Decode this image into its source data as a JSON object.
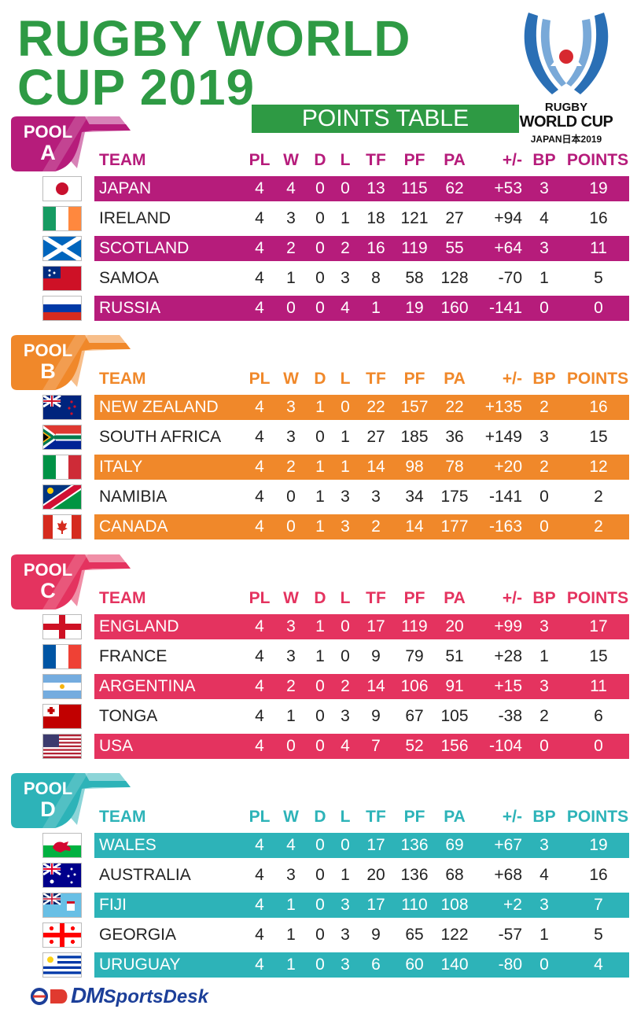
{
  "title_line1": "RUGBY WORLD",
  "title_line2": "CUP 2019",
  "subtitle": "POINTS TABLE",
  "logo": {
    "line1": "RUGBY",
    "line2": "WORLD CUP",
    "line3": "JAPAN日本2019"
  },
  "columns": {
    "team": "TEAM",
    "pl": "PL",
    "w": "W",
    "d": "D",
    "l": "L",
    "tf": "TF",
    "pf": "PF",
    "pa": "PA",
    "diff": "+/-",
    "bp": "BP",
    "pts": "POINTS"
  },
  "pools": [
    {
      "word": "POOL",
      "letter": "A",
      "color": "#b61c7b",
      "teams": [
        {
          "name": "JAPAN",
          "flag": "japan-flag",
          "pl": "4",
          "w": "4",
          "d": "0",
          "l": "0",
          "tf": "13",
          "pf": "115",
          "pa": "62",
          "diff": "+53",
          "bp": "3",
          "pts": "19"
        },
        {
          "name": "IRELAND",
          "flag": "ireland-flag",
          "pl": "4",
          "w": "3",
          "d": "0",
          "l": "1",
          "tf": "18",
          "pf": "121",
          "pa": "27",
          "diff": "+94",
          "bp": "4",
          "pts": "16"
        },
        {
          "name": "SCOTLAND",
          "flag": "scotland-flag",
          "pl": "4",
          "w": "2",
          "d": "0",
          "l": "2",
          "tf": "16",
          "pf": "119",
          "pa": "55",
          "diff": "+64",
          "bp": "3",
          "pts": "11"
        },
        {
          "name": "SAMOA",
          "flag": "samoa-flag",
          "pl": "4",
          "w": "1",
          "d": "0",
          "l": "3",
          "tf": "8",
          "pf": "58",
          "pa": "128",
          "diff": "-70",
          "bp": "1",
          "pts": "5"
        },
        {
          "name": "RUSSIA",
          "flag": "russia-flag",
          "pl": "4",
          "w": "0",
          "d": "0",
          "l": "4",
          "tf": "1",
          "pf": "19",
          "pa": "160",
          "diff": "-141",
          "bp": "0",
          "pts": "0"
        }
      ]
    },
    {
      "word": "POOL",
      "letter": "B",
      "color": "#f0882a",
      "teams": [
        {
          "name": "NEW ZEALAND",
          "flag": "new-zealand-flag",
          "pl": "4",
          "w": "3",
          "d": "1",
          "l": "0",
          "tf": "22",
          "pf": "157",
          "pa": "22",
          "diff": "+135",
          "bp": "2",
          "pts": "16"
        },
        {
          "name": "SOUTH AFRICA",
          "flag": "south-africa-flag",
          "pl": "4",
          "w": "3",
          "d": "0",
          "l": "1",
          "tf": "27",
          "pf": "185",
          "pa": "36",
          "diff": "+149",
          "bp": "3",
          "pts": "15"
        },
        {
          "name": "ITALY",
          "flag": "italy-flag",
          "pl": "4",
          "w": "2",
          "d": "1",
          "l": "1",
          "tf": "14",
          "pf": "98",
          "pa": "78",
          "diff": "+20",
          "bp": "2",
          "pts": "12"
        },
        {
          "name": "NAMIBIA",
          "flag": "namibia-flag",
          "pl": "4",
          "w": "0",
          "d": "1",
          "l": "3",
          "tf": "3",
          "pf": "34",
          "pa": "175",
          "diff": "-141",
          "bp": "0",
          "pts": "2"
        },
        {
          "name": "CANADA",
          "flag": "canada-flag",
          "pl": "4",
          "w": "0",
          "d": "1",
          "l": "3",
          "tf": "2",
          "pf": "14",
          "pa": "177",
          "diff": "-163",
          "bp": "0",
          "pts": "2"
        }
      ]
    },
    {
      "word": "POOL",
      "letter": "C",
      "color": "#e4335f",
      "teams": [
        {
          "name": "ENGLAND",
          "flag": "england-flag",
          "pl": "4",
          "w": "3",
          "d": "1",
          "l": "0",
          "tf": "17",
          "pf": "119",
          "pa": "20",
          "diff": "+99",
          "bp": "3",
          "pts": "17"
        },
        {
          "name": "FRANCE",
          "flag": "france-flag",
          "pl": "4",
          "w": "3",
          "d": "1",
          "l": "0",
          "tf": "9",
          "pf": "79",
          "pa": "51",
          "diff": "+28",
          "bp": "1",
          "pts": "15"
        },
        {
          "name": "ARGENTINA",
          "flag": "argentina-flag",
          "pl": "4",
          "w": "2",
          "d": "0",
          "l": "2",
          "tf": "14",
          "pf": "106",
          "pa": "91",
          "diff": "+15",
          "bp": "3",
          "pts": "11"
        },
        {
          "name": "TONGA",
          "flag": "tonga-flag",
          "pl": "4",
          "w": "1",
          "d": "0",
          "l": "3",
          "tf": "9",
          "pf": "67",
          "pa": "105",
          "diff": "-38",
          "bp": "2",
          "pts": "6"
        },
        {
          "name": "USA",
          "flag": "usa-flag",
          "pl": "4",
          "w": "0",
          "d": "0",
          "l": "4",
          "tf": "7",
          "pf": "52",
          "pa": "156",
          "diff": "-104",
          "bp": "0",
          "pts": "0"
        }
      ]
    },
    {
      "word": "POOL",
      "letter": "D",
      "color": "#2db3b8",
      "teams": [
        {
          "name": "WALES",
          "flag": "wales-flag",
          "pl": "4",
          "w": "4",
          "d": "0",
          "l": "0",
          "tf": "17",
          "pf": "136",
          "pa": "69",
          "diff": "+67",
          "bp": "3",
          "pts": "19"
        },
        {
          "name": "AUSTRALIA",
          "flag": "australia-flag",
          "pl": "4",
          "w": "3",
          "d": "0",
          "l": "1",
          "tf": "20",
          "pf": "136",
          "pa": "68",
          "diff": "+68",
          "bp": "4",
          "pts": "16"
        },
        {
          "name": "FIJI",
          "flag": "fiji-flag",
          "pl": "4",
          "w": "1",
          "d": "0",
          "l": "3",
          "tf": "17",
          "pf": "110",
          "pa": "108",
          "diff": "+2",
          "bp": "3",
          "pts": "7"
        },
        {
          "name": "GEORGIA",
          "flag": "georgia-flag",
          "pl": "4",
          "w": "1",
          "d": "0",
          "l": "3",
          "tf": "9",
          "pf": "65",
          "pa": "122",
          "diff": "-57",
          "bp": "1",
          "pts": "5"
        },
        {
          "name": "URUGUAY",
          "flag": "uruguay-flag",
          "pl": "4",
          "w": "1",
          "d": "0",
          "l": "3",
          "tf": "6",
          "pf": "60",
          "pa": "140",
          "diff": "-80",
          "bp": "0",
          "pts": "4"
        }
      ]
    }
  ],
  "footer": {
    "brand_prefix": "DM",
    "brand_suffix": "SportsDesk"
  }
}
